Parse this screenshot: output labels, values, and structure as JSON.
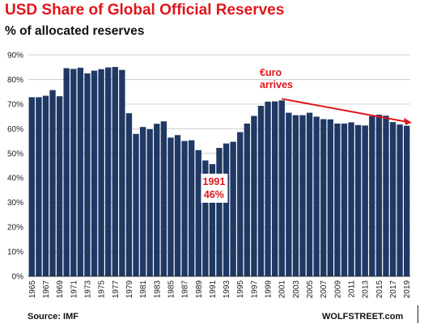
{
  "title": "USD Share of Global Official Reserves",
  "subtitle": "% of allocated reserves",
  "source": "Source: IMF",
  "credit": "WOLFSTREET.com",
  "colors": {
    "bar": "#1f3864",
    "title": "#e0161c",
    "annotation": "#e0161c",
    "grid": "#d0d0d0"
  },
  "chart_data": {
    "type": "bar",
    "title": "USD Share of Global Official Reserves",
    "ylabel": "% of allocated reserves",
    "ylim": [
      0,
      90
    ],
    "y_ticks": [
      "0%",
      "10%",
      "20%",
      "30%",
      "40%",
      "50%",
      "60%",
      "70%",
      "80%",
      "90%"
    ],
    "grid": false,
    "categories": [
      "1965",
      "1966",
      "1967",
      "1968",
      "1969",
      "1970",
      "1971",
      "1972",
      "1973",
      "1974",
      "1975",
      "1976",
      "1977",
      "1978",
      "1979",
      "1980",
      "1981",
      "1982",
      "1983",
      "1984",
      "1985",
      "1986",
      "1987",
      "1988",
      "1989",
      "1990",
      "1991",
      "1992",
      "1993",
      "1994",
      "1995",
      "1996",
      "1997",
      "1998",
      "1999",
      "2000",
      "2001",
      "2002",
      "2003",
      "2004",
      "2005",
      "2006",
      "2007",
      "2008",
      "2009",
      "2010",
      "2011",
      "2012",
      "2013",
      "2014",
      "2015",
      "2016",
      "2017",
      "2018",
      "2019"
    ],
    "x_tick_labels": [
      "1965",
      "1967",
      "1969",
      "1971",
      "1973",
      "1975",
      "1977",
      "1979",
      "1981",
      "1983",
      "1985",
      "1987",
      "1989",
      "1991",
      "1993",
      "1995",
      "1997",
      "1999",
      "2001",
      "2003",
      "2005",
      "2007",
      "2009",
      "2011",
      "2013",
      "2015",
      "2017",
      "2019"
    ],
    "values": [
      72.8,
      72.8,
      73.4,
      75.7,
      73.2,
      84.6,
      84.3,
      84.8,
      82.5,
      83.6,
      84.2,
      84.9,
      85.1,
      83.9,
      66.3,
      57.9,
      60.7,
      59.8,
      62.0,
      63.0,
      56.4,
      57.4,
      55.0,
      55.3,
      51.3,
      47.1,
      45.6,
      52.2,
      54.0,
      54.7,
      58.6,
      62.1,
      65.2,
      69.3,
      71.0,
      71.1,
      71.5,
      66.5,
      65.5,
      65.5,
      66.5,
      64.9,
      63.9,
      63.8,
      62.1,
      62.1,
      62.6,
      61.5,
      61.3,
      65.1,
      65.7,
      65.3,
      62.7,
      61.7,
      61.2
    ],
    "annotations": [
      {
        "text_lines": [
          "1991",
          "46%"
        ],
        "at": "1991"
      },
      {
        "text_lines": [
          "€uro",
          "arrives"
        ],
        "at": "2001",
        "arrow_to": "2020",
        "arrow_from_value": 71.5,
        "arrow_to_value": 62.5
      }
    ]
  }
}
